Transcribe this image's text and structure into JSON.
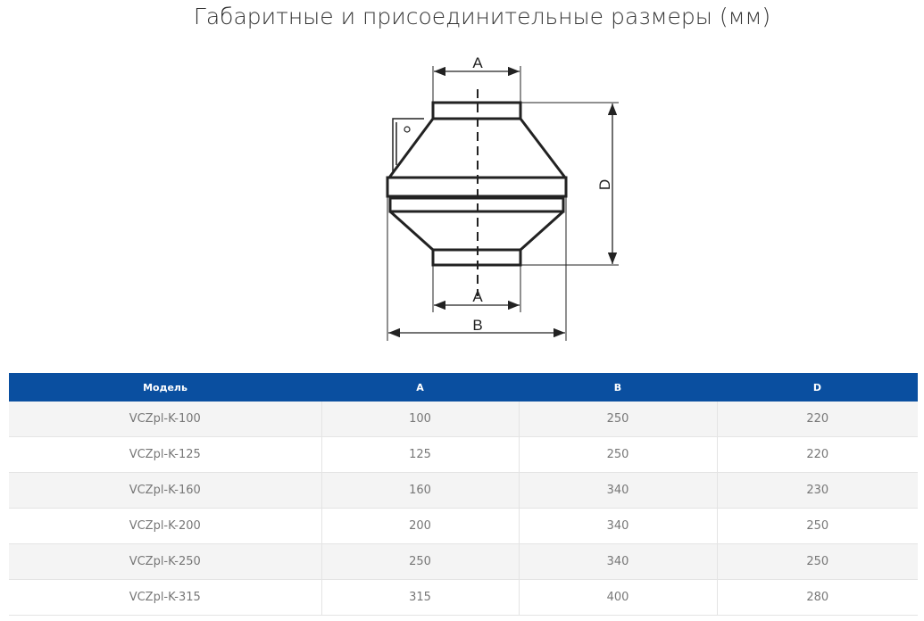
{
  "title": "Габаритные и присоединительные размеры (мм)",
  "diagram": {
    "labels": {
      "top_a": "A",
      "bottom_a": "A",
      "b": "B",
      "d": "D"
    }
  },
  "table": {
    "headers": [
      "Модель",
      "A",
      "B",
      "D"
    ],
    "rows": [
      [
        "VCZpl-K-100",
        "100",
        "250",
        "220"
      ],
      [
        "VCZpl-K-125",
        "125",
        "250",
        "220"
      ],
      [
        "VCZpl-K-160",
        "160",
        "340",
        "230"
      ],
      [
        "VCZpl-K-200",
        "200",
        "340",
        "250"
      ],
      [
        "VCZpl-K-250",
        "250",
        "340",
        "250"
      ],
      [
        "VCZpl-K-315",
        "315",
        "400",
        "280"
      ]
    ]
  },
  "colors": {
    "header_bg": "#0a4fa0"
  }
}
